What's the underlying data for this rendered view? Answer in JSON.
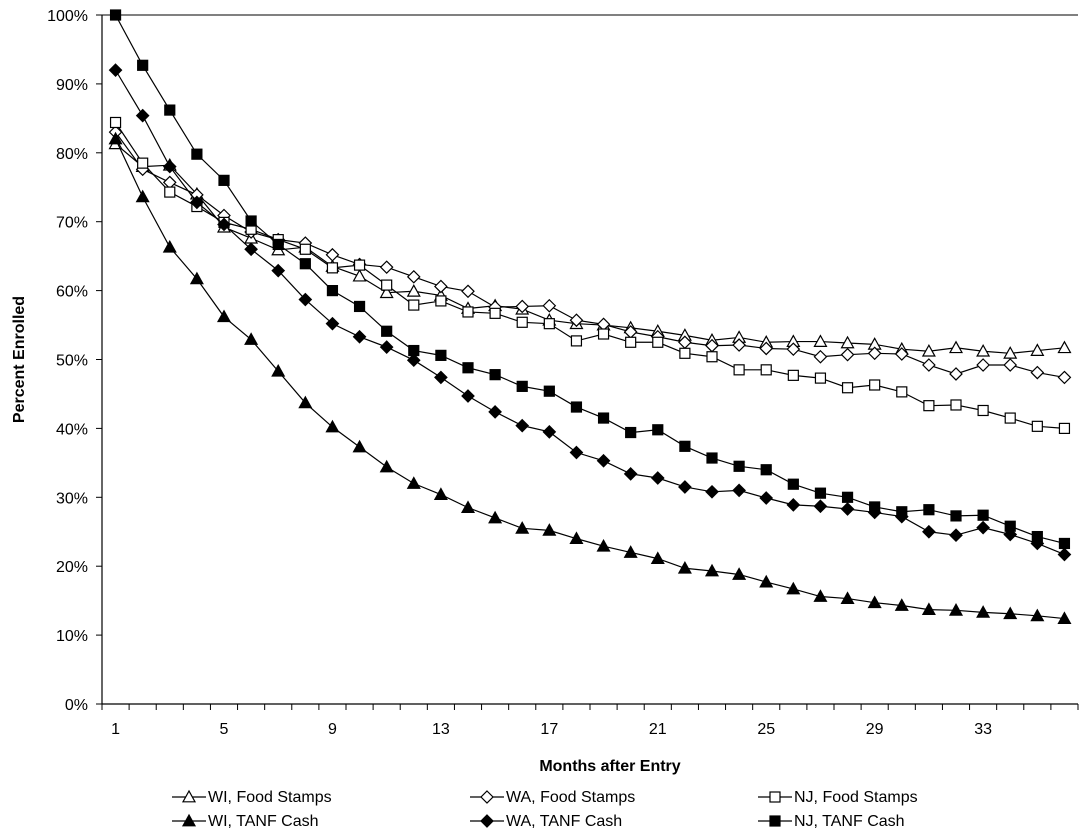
{
  "chart_data": {
    "type": "line",
    "title": "",
    "xlabel": "Months after Entry",
    "ylabel": "Percent Enrolled",
    "xlim": [
      0.5,
      36.5
    ],
    "ylim": [
      0,
      100
    ],
    "x_ticks": [
      1,
      5,
      9,
      13,
      17,
      21,
      25,
      29,
      33
    ],
    "x_tick_labels": [
      "1",
      "5",
      "9",
      "13",
      "17",
      "21",
      "25",
      "29",
      "33"
    ],
    "y_ticks": [
      0,
      10,
      20,
      30,
      40,
      50,
      60,
      70,
      80,
      90,
      100
    ],
    "y_tick_labels": [
      "0%",
      "10%",
      "20%",
      "30%",
      "40%",
      "50%",
      "60%",
      "70%",
      "80%",
      "90%",
      "100%"
    ],
    "grid": false,
    "legend_position": "bottom",
    "x": [
      1,
      2,
      3,
      4,
      5,
      6,
      7,
      8,
      9,
      10,
      11,
      12,
      13,
      14,
      15,
      16,
      17,
      18,
      19,
      20,
      21,
      22,
      23,
      24,
      25,
      26,
      27,
      28,
      29,
      30,
      31,
      32,
      33,
      34,
      35,
      36
    ],
    "series": [
      {
        "name": "WI, Food Stamps",
        "marker": "triangle-open",
        "values": [
          81.3,
          78.0,
          78.2,
          74.0,
          69.2,
          67.6,
          65.9,
          66.3,
          63.5,
          62.1,
          59.7,
          59.9,
          59.3,
          57.4,
          57.8,
          57.3,
          55.7,
          55.2,
          55.0,
          54.6,
          54.1,
          53.5,
          52.8,
          53.2,
          52.5,
          52.6,
          52.6,
          52.4,
          52.2,
          51.5,
          51.2,
          51.7,
          51.2,
          50.9,
          51.3,
          51.7
        ]
      },
      {
        "name": "WA, Food Stamps",
        "marker": "diamond-open",
        "values": [
          83.0,
          77.6,
          75.7,
          73.9,
          70.9,
          68.5,
          67.4,
          66.9,
          65.2,
          63.8,
          63.4,
          62.0,
          60.6,
          59.9,
          57.6,
          57.7,
          57.8,
          55.7,
          55.1,
          54.0,
          53.3,
          52.5,
          52.0,
          52.1,
          51.6,
          51.5,
          50.4,
          50.7,
          50.9,
          50.8,
          49.2,
          47.9,
          49.2,
          49.2,
          48.1,
          47.4
        ]
      },
      {
        "name": "NJ, Food Stamps",
        "marker": "square-open",
        "values": [
          84.4,
          78.5,
          74.3,
          72.2,
          69.9,
          68.9,
          67.4,
          66.0,
          63.3,
          63.7,
          60.8,
          57.9,
          58.5,
          56.9,
          56.7,
          55.4,
          55.2,
          52.7,
          53.7,
          52.5,
          52.5,
          50.9,
          50.4,
          48.5,
          48.5,
          47.7,
          47.3,
          45.9,
          46.3,
          45.3,
          43.3,
          43.4,
          42.6,
          41.5,
          40.3,
          40.0
        ]
      },
      {
        "name": "WI, TANF Cash",
        "marker": "triangle-filled",
        "values": [
          82.0,
          73.6,
          66.3,
          61.7,
          56.2,
          52.9,
          48.3,
          43.7,
          40.2,
          37.3,
          34.4,
          32.0,
          30.4,
          28.5,
          27.0,
          25.5,
          25.2,
          24.0,
          22.9,
          22.0,
          21.1,
          19.7,
          19.3,
          18.8,
          17.7,
          16.7,
          15.6,
          15.3,
          14.7,
          14.3,
          13.7,
          13.6,
          13.3,
          13.1,
          12.8,
          12.4
        ]
      },
      {
        "name": "WA, TANF Cash",
        "marker": "diamond-filled",
        "values": [
          92.0,
          85.4,
          78.0,
          72.8,
          69.6,
          66.0,
          62.9,
          58.7,
          55.2,
          53.3,
          51.8,
          49.9,
          47.4,
          44.7,
          42.4,
          40.4,
          39.5,
          36.5,
          35.3,
          33.4,
          32.8,
          31.5,
          30.8,
          31.0,
          29.9,
          28.9,
          28.7,
          28.3,
          27.8,
          27.2,
          25.0,
          24.5,
          25.6,
          24.6,
          23.3,
          21.7
        ]
      },
      {
        "name": "NJ, TANF Cash",
        "marker": "square-filled",
        "values": [
          100.0,
          92.7,
          86.2,
          79.8,
          76.0,
          70.1,
          66.7,
          63.9,
          60.0,
          57.7,
          54.1,
          51.3,
          50.6,
          48.8,
          47.8,
          46.1,
          45.4,
          43.1,
          41.5,
          39.4,
          39.8,
          37.4,
          35.7,
          34.5,
          34.0,
          31.9,
          30.6,
          30.0,
          28.6,
          27.9,
          28.2,
          27.3,
          27.4,
          25.8,
          24.3,
          23.3
        ]
      }
    ]
  }
}
